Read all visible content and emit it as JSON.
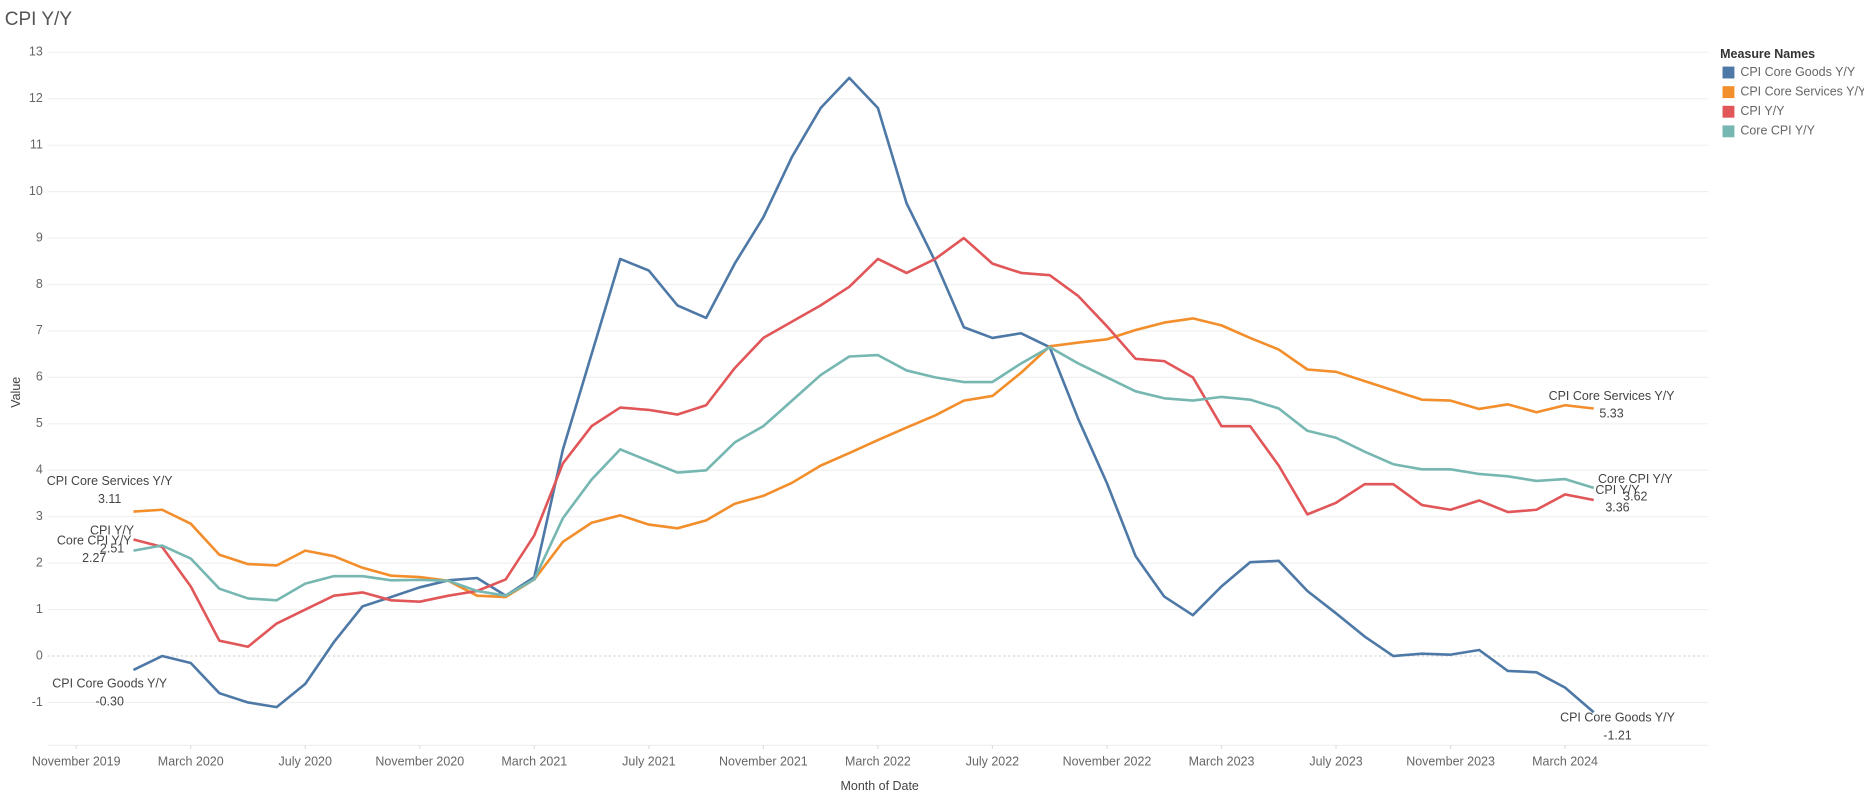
{
  "chart_data": {
    "type": "line",
    "title": "CPI Y/Y",
    "x_label": "Month of Date",
    "y_label": "Value",
    "legend_title": "Measure Names",
    "legend": "right",
    "grid": true,
    "x": [
      "2020-01",
      "2020-02",
      "2020-03",
      "2020-04",
      "2020-05",
      "2020-06",
      "2020-07",
      "2020-08",
      "2020-09",
      "2020-10",
      "2020-11",
      "2020-12",
      "2021-01",
      "2021-02",
      "2021-03",
      "2021-04",
      "2021-05",
      "2021-06",
      "2021-07",
      "2021-08",
      "2021-09",
      "2021-10",
      "2021-11",
      "2021-12",
      "2022-01",
      "2022-02",
      "2022-03",
      "2022-04",
      "2022-05",
      "2022-06",
      "2022-07",
      "2022-08",
      "2022-09",
      "2022-10",
      "2022-11",
      "2022-12",
      "2023-01",
      "2023-02",
      "2023-03",
      "2023-04",
      "2023-05",
      "2023-06",
      "2023-07",
      "2023-08",
      "2023-09",
      "2023-10",
      "2023-11",
      "2023-12",
      "2024-01",
      "2024-02",
      "2024-03",
      "2024-04"
    ],
    "xlim": [
      "2019-10",
      "2024-08"
    ],
    "xticks": [
      {
        "value": "2019-11",
        "label": "November 2019"
      },
      {
        "value": "2020-03",
        "label": "March 2020"
      },
      {
        "value": "2020-07",
        "label": "July 2020"
      },
      {
        "value": "2020-11",
        "label": "November 2020"
      },
      {
        "value": "2021-03",
        "label": "March 2021"
      },
      {
        "value": "2021-07",
        "label": "July 2021"
      },
      {
        "value": "2021-11",
        "label": "November 2021"
      },
      {
        "value": "2022-03",
        "label": "March 2022"
      },
      {
        "value": "2022-07",
        "label": "July 2022"
      },
      {
        "value": "2022-11",
        "label": "November 2022"
      },
      {
        "value": "2023-03",
        "label": "March 2023"
      },
      {
        "value": "2023-07",
        "label": "July 2023"
      },
      {
        "value": "2023-11",
        "label": "November 2023"
      },
      {
        "value": "2024-03",
        "label": "March 2024"
      }
    ],
    "ylim": [
      -2,
      13
    ],
    "yticks": [
      -1,
      0,
      1,
      2,
      3,
      4,
      5,
      6,
      7,
      8,
      9,
      10,
      11,
      12,
      13
    ],
    "series": [
      {
        "name": "CPI Core Goods Y/Y",
        "color": "#4e79a7",
        "values": [
          -0.3,
          0.0,
          -0.15,
          -0.8,
          -1.0,
          -1.1,
          -0.6,
          0.3,
          1.07,
          1.27,
          1.48,
          1.63,
          1.68,
          1.3,
          1.7,
          4.45,
          6.5,
          8.55,
          8.3,
          7.55,
          7.28,
          8.45,
          9.45,
          10.75,
          11.8,
          12.45,
          11.8,
          9.75,
          8.5,
          7.08,
          6.85,
          6.95,
          6.65,
          5.1,
          3.72,
          2.15,
          1.28,
          0.88,
          1.5,
          2.02,
          2.05,
          1.4,
          0.92,
          0.42,
          0.0,
          0.05,
          0.03,
          0.13,
          -0.32,
          -0.35,
          -0.68,
          -1.21
        ],
        "end_labels": [
          "-0.30",
          "-1.21"
        ]
      },
      {
        "name": "CPI Core Services Y/Y",
        "color": "#f28e2b",
        "values": [
          3.11,
          3.15,
          2.85,
          2.18,
          1.98,
          1.95,
          2.27,
          2.15,
          1.9,
          1.73,
          1.7,
          1.62,
          1.3,
          1.27,
          1.65,
          2.46,
          2.87,
          3.03,
          2.83,
          2.75,
          2.92,
          3.28,
          3.45,
          3.73,
          4.1,
          4.37,
          4.65,
          4.92,
          5.18,
          5.5,
          5.6,
          6.1,
          6.67,
          6.75,
          6.82,
          7.02,
          7.18,
          7.27,
          7.12,
          6.85,
          6.6,
          6.17,
          6.12,
          5.92,
          5.72,
          5.52,
          5.5,
          5.32,
          5.42,
          5.25,
          5.4,
          5.33
        ],
        "end_labels": [
          "3.11",
          "5.33"
        ]
      },
      {
        "name": "CPI Y/Y",
        "color": "#e15759",
        "values": [
          2.51,
          2.35,
          1.5,
          0.33,
          0.2,
          0.7,
          1.0,
          1.3,
          1.37,
          1.2,
          1.17,
          1.3,
          1.4,
          1.65,
          2.6,
          4.15,
          4.95,
          5.35,
          5.3,
          5.2,
          5.4,
          6.2,
          6.85,
          7.2,
          7.55,
          7.95,
          8.55,
          8.25,
          8.55,
          9.0,
          8.45,
          8.25,
          8.2,
          7.75,
          7.1,
          6.4,
          6.35,
          6.0,
          4.95,
          4.95,
          4.1,
          3.05,
          3.3,
          3.7,
          3.7,
          3.25,
          3.15,
          3.35,
          3.1,
          3.15,
          3.48,
          3.36
        ],
        "end_labels": [
          "2.51",
          "3.36"
        ]
      },
      {
        "name": "Core CPI Y/Y",
        "color": "#76b7b2",
        "values": [
          2.27,
          2.38,
          2.1,
          1.45,
          1.24,
          1.2,
          1.56,
          1.72,
          1.72,
          1.63,
          1.64,
          1.62,
          1.4,
          1.3,
          1.65,
          2.97,
          3.8,
          4.45,
          4.2,
          3.95,
          4.0,
          4.6,
          4.95,
          5.5,
          6.05,
          6.45,
          6.48,
          6.15,
          6.0,
          5.9,
          5.9,
          6.3,
          6.65,
          6.3,
          6.0,
          5.7,
          5.55,
          5.5,
          5.58,
          5.52,
          5.33,
          4.85,
          4.7,
          4.4,
          4.13,
          4.02,
          4.02,
          3.92,
          3.87,
          3.77,
          3.81,
          3.62
        ],
        "end_labels": [
          "2.27",
          "3.62"
        ]
      }
    ]
  }
}
